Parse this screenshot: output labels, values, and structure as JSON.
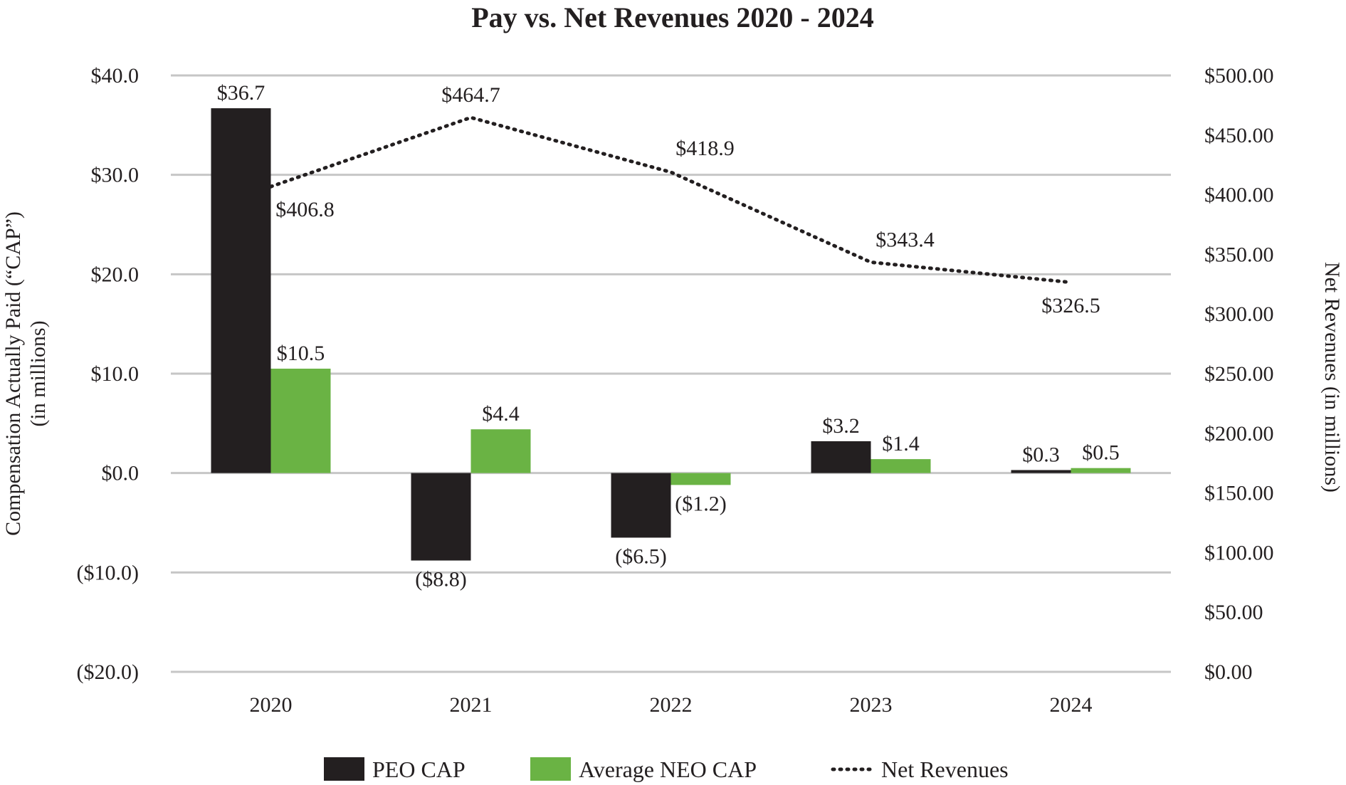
{
  "chart_data": {
    "type": "bar",
    "title": "Pay vs. Net Revenues 2020 - 2024",
    "categories": [
      "2020",
      "2021",
      "2022",
      "2023",
      "2024"
    ],
    "ylabel": "Compensation Actually Paid (“CAP”)",
    "ylabel_sub": "(in millions)",
    "y2label": "Net Revenues (in millions)",
    "ylim": [
      -20,
      40
    ],
    "y2lim": [
      0,
      500
    ],
    "y_ticks": [
      40,
      30,
      20,
      10,
      0,
      -10,
      -20
    ],
    "y_tick_labels": [
      "$40.0",
      "$30.0",
      "$20.0",
      "$10.0",
      "$0.0",
      "($10.0)",
      "($20.0)"
    ],
    "y2_ticks": [
      500,
      450,
      400,
      350,
      300,
      250,
      200,
      150,
      100,
      50,
      0
    ],
    "y2_tick_labels": [
      "$500.00",
      "$450.00",
      "$400.00",
      "$350.00",
      "$300.00",
      "$250.00",
      "$200.00",
      "$150.00",
      "$100.00",
      "$50.00",
      "$0.00"
    ],
    "grid": true,
    "legend_position": "bottom",
    "series": [
      {
        "name": "PEO CAP",
        "kind": "bar",
        "axis": "left",
        "color": "#231f20",
        "values": [
          36.7,
          -8.8,
          -6.5,
          3.2,
          0.3
        ],
        "labels": [
          "$36.7",
          "($8.8)",
          "($6.5)",
          "$3.2",
          "$0.3"
        ]
      },
      {
        "name": "Average NEO CAP",
        "kind": "bar",
        "axis": "left",
        "color": "#6ab344",
        "values": [
          10.5,
          4.4,
          -1.2,
          1.4,
          0.5
        ],
        "labels": [
          "$10.5",
          "$4.4",
          "($1.2)",
          "$1.4",
          "$0.5"
        ]
      },
      {
        "name": "Net Revenues",
        "kind": "line",
        "style": "dotted",
        "axis": "right",
        "color": "#231f20",
        "values": [
          406.8,
          464.7,
          418.9,
          343.4,
          326.5
        ],
        "labels": [
          "$406.8",
          "$464.7",
          "$418.9",
          "$343.4",
          "$326.5"
        ]
      }
    ]
  }
}
